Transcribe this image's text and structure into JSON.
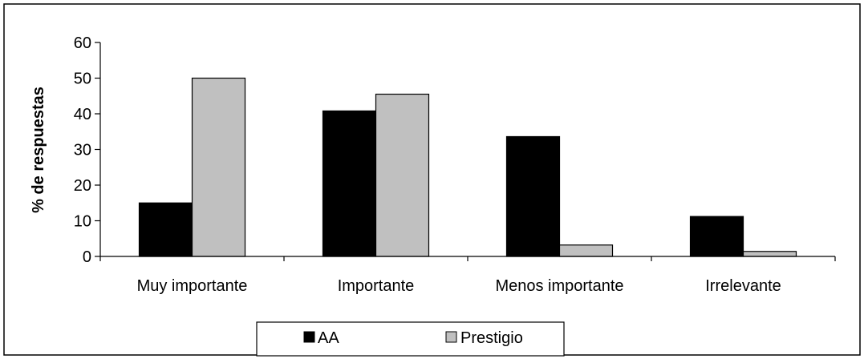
{
  "chart_data": {
    "type": "bar",
    "categories": [
      "Muy importante",
      "Importante",
      "Menos importante",
      "Irrelevante"
    ],
    "series": [
      {
        "name": "AA",
        "values": [
          15,
          40.8,
          33.6,
          11.2
        ],
        "color": "#000000"
      },
      {
        "name": "Prestigio",
        "values": [
          50,
          45.5,
          3.2,
          1.4
        ],
        "color": "#c0c0c0"
      }
    ],
    "title": "",
    "xlabel": "",
    "ylabel": "% de respuestas",
    "ylim": [
      0,
      60
    ],
    "yticks": [
      0,
      10,
      20,
      30,
      40,
      50,
      60
    ],
    "grid": false,
    "legend": {
      "placement": "bottom-center",
      "entries": [
        "AA",
        "Prestigio"
      ]
    }
  }
}
